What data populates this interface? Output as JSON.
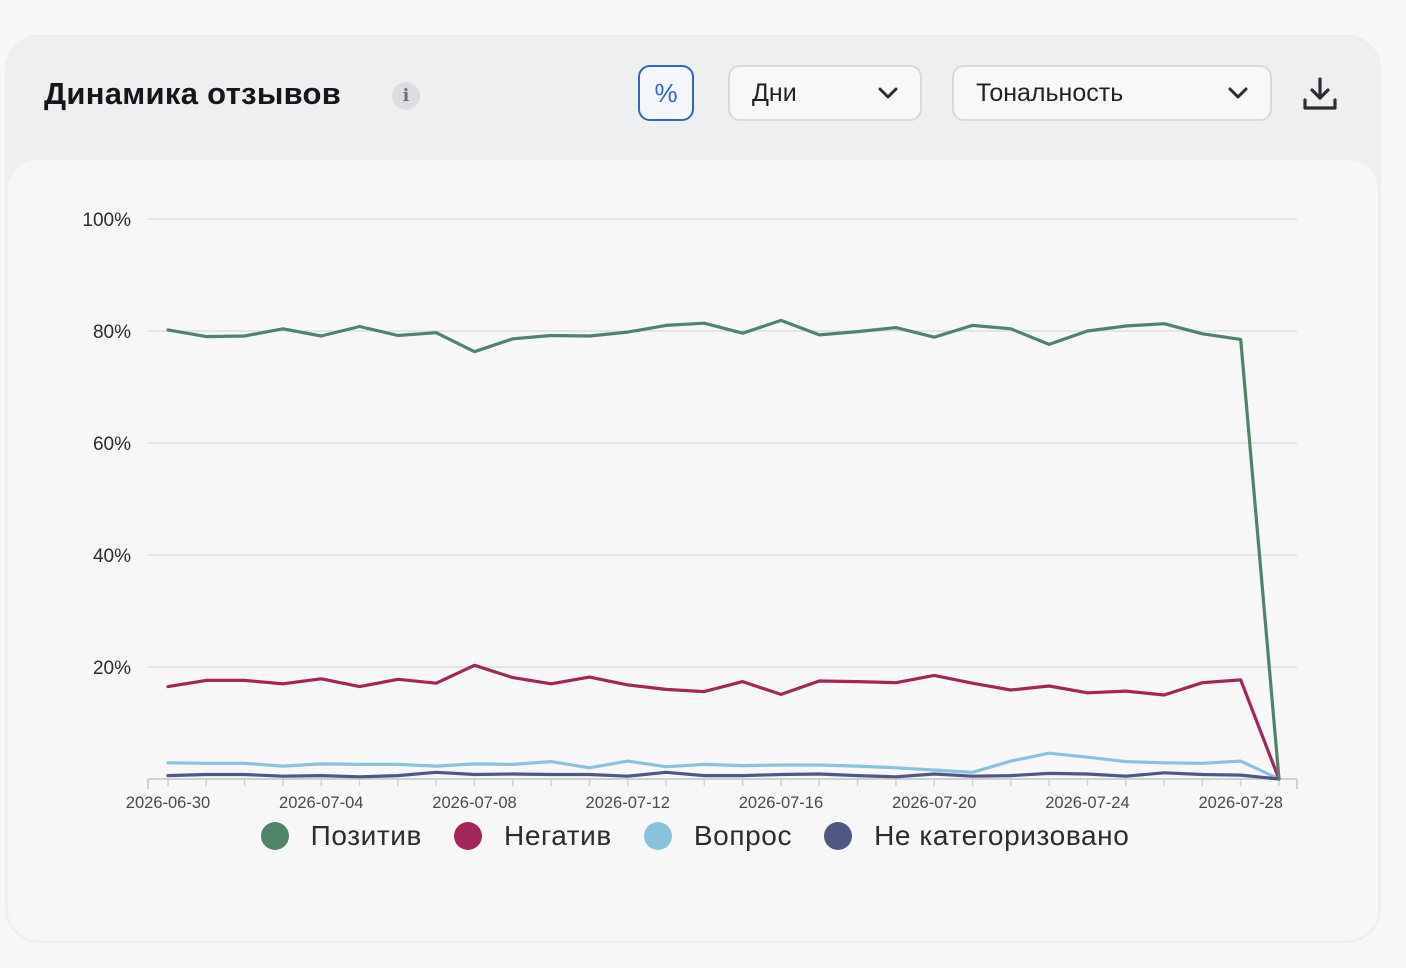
{
  "header": {
    "title": "Динамика отзывов",
    "info_icon": "info-icon",
    "percent_toggle_label": "%",
    "period_select": {
      "value": "Дни",
      "icon": "chevron-down-icon"
    },
    "tone_select": {
      "value": "Тональность",
      "icon": "chevron-down-icon"
    },
    "download_icon": "download-icon"
  },
  "colors": {
    "positive": "#4f8468",
    "negative": "#a3265a",
    "question": "#8ac2de",
    "uncategorized": "#4e5883",
    "accent": "#3464c4"
  },
  "chart_data": {
    "type": "line",
    "x": [
      "2026-06-30",
      "2026-07-01",
      "2026-07-02",
      "2026-07-03",
      "2026-07-04",
      "2026-07-05",
      "2026-07-06",
      "2026-07-07",
      "2026-07-08",
      "2026-07-09",
      "2026-07-10",
      "2026-07-11",
      "2026-07-12",
      "2026-07-13",
      "2026-07-14",
      "2026-07-15",
      "2026-07-16",
      "2026-07-17",
      "2026-07-18",
      "2026-07-19",
      "2026-07-20",
      "2026-07-21",
      "2026-07-22",
      "2026-07-23",
      "2026-07-24",
      "2026-07-25",
      "2026-07-26",
      "2026-07-27",
      "2026-07-28",
      "2026-07-29"
    ],
    "x_tick_labels": [
      "2026-06-30",
      "2026-07-04",
      "2026-07-08",
      "2026-07-12",
      "2026-07-16",
      "2026-07-20",
      "2026-07-24",
      "2026-07-28"
    ],
    "y_tick_labels": [
      "100%",
      "80%",
      "60%",
      "40%",
      "20%"
    ],
    "ylim": [
      0,
      100
    ],
    "grid": true,
    "legend_position": "bottom",
    "series": [
      {
        "name": "Позитив",
        "color": "#4f8468",
        "values": [
          80.2,
          79.0,
          79.1,
          80.4,
          79.1,
          80.8,
          79.2,
          79.7,
          76.3,
          78.6,
          79.2,
          79.1,
          79.8,
          81.0,
          81.4,
          79.6,
          81.9,
          79.3,
          79.9,
          80.6,
          78.9,
          81.0,
          80.4,
          77.6,
          80.0,
          80.9,
          81.3,
          79.5,
          78.5,
          0
        ]
      },
      {
        "name": "Негатив",
        "color": "#a3265a",
        "values": [
          16.5,
          17.6,
          17.6,
          17.0,
          17.9,
          16.5,
          17.8,
          17.1,
          20.3,
          18.1,
          17.0,
          18.2,
          16.8,
          16.0,
          15.6,
          17.4,
          15.1,
          17.5,
          17.4,
          17.2,
          18.5,
          17.1,
          15.9,
          16.6,
          15.4,
          15.7,
          15.0,
          17.2,
          17.7,
          0
        ]
      },
      {
        "name": "Вопрос",
        "color": "#8ac2de",
        "values": [
          2.9,
          2.8,
          2.8,
          2.3,
          2.7,
          2.6,
          2.6,
          2.3,
          2.7,
          2.6,
          3.1,
          2.0,
          3.2,
          2.2,
          2.6,
          2.4,
          2.5,
          2.5,
          2.3,
          2.0,
          1.6,
          1.2,
          3.2,
          4.6,
          3.9,
          3.1,
          2.9,
          2.8,
          3.2,
          0
        ]
      },
      {
        "name": "Не категоризовано",
        "color": "#4e5883",
        "values": [
          0.6,
          0.8,
          0.8,
          0.5,
          0.6,
          0.4,
          0.6,
          1.2,
          0.8,
          0.9,
          0.8,
          0.8,
          0.5,
          1.2,
          0.6,
          0.6,
          0.8,
          0.9,
          0.6,
          0.4,
          0.9,
          0.5,
          0.6,
          1.0,
          0.9,
          0.5,
          1.1,
          0.8,
          0.7,
          0
        ]
      }
    ]
  }
}
